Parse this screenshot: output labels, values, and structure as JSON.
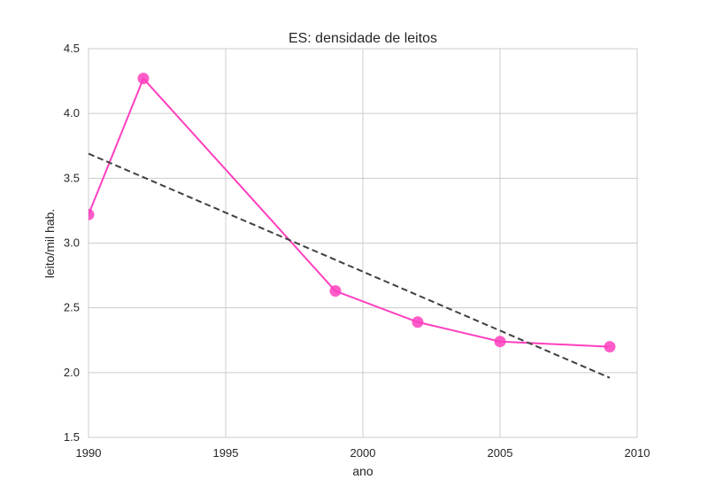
{
  "chart_data": {
    "type": "line",
    "title": "ES: densidade de leitos",
    "xlabel": "ano",
    "ylabel": "leito/mil hab.",
    "xlim": [
      1990,
      2010
    ],
    "ylim": [
      1.5,
      4.5
    ],
    "x_ticks": [
      1990,
      1995,
      2000,
      2005,
      2010
    ],
    "y_ticks": [
      1.5,
      2.0,
      2.5,
      3.0,
      3.5,
      4.0,
      4.5
    ],
    "x_tick_labels": [
      "1990",
      "1995",
      "2000",
      "2005",
      "2010"
    ],
    "y_tick_labels": [
      "1.5",
      "2.0",
      "2.5",
      "3.0",
      "3.5",
      "4.0",
      "4.5"
    ],
    "grid": true,
    "series": [
      {
        "type": "line-markers",
        "color": "#ff3fbf",
        "x": [
          1990,
          1992,
          1999,
          2002,
          2005,
          2009
        ],
        "y": [
          3.22,
          4.27,
          2.63,
          2.39,
          2.24,
          2.2
        ]
      },
      {
        "type": "trend-dashed",
        "color": "#404040",
        "x": [
          1990,
          2009
        ],
        "y": [
          3.69,
          1.96
        ]
      }
    ]
  }
}
